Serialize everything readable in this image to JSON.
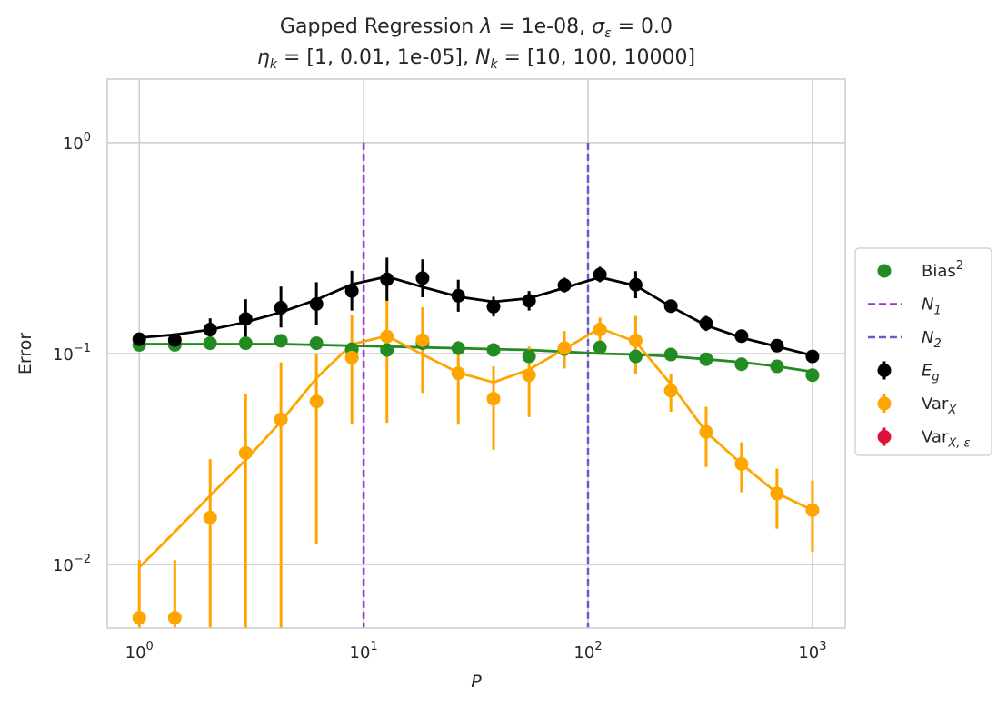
{
  "chart_data": {
    "type": "scatter",
    "title_line1": "Gapped Regression λ = 1e-08, σε = 0.0",
    "title_line2": "ηk = [1, 0.01, 1e-05], Nk = [10, 100, 10000]",
    "xlabel": "P",
    "ylabel": "Error",
    "xscale": "log",
    "yscale": "log",
    "xlim": [
      0.72,
      1400
    ],
    "ylim": [
      0.005,
      2.0
    ],
    "grid": true,
    "legend_position": "center-right",
    "x_ticks": [
      {
        "base": "10",
        "exp": "0"
      },
      {
        "base": "10",
        "exp": "1"
      },
      {
        "base": "10",
        "exp": "2"
      },
      {
        "base": "10",
        "exp": "3"
      }
    ],
    "y_ticks": [
      {
        "base": "10",
        "exp": "−2"
      },
      {
        "base": "10",
        "exp": "−1"
      },
      {
        "base": "10",
        "exp": "0"
      }
    ],
    "vlines": [
      {
        "x": 10,
        "label": "N₁",
        "color": "#9932cc"
      },
      {
        "x": 100,
        "label": "N₂",
        "color": "#6a5acd"
      }
    ],
    "x": [
      1,
      1.44,
      2.07,
      2.98,
      4.28,
      6.16,
      8.86,
      12.7,
      18.3,
      26.4,
      37.9,
      54.6,
      78.5,
      113,
      163,
      234,
      336,
      483,
      695,
      1000
    ],
    "series": [
      {
        "name": "Bias²",
        "color": "#228b22",
        "points": [
          0.11,
          0.11,
          0.112,
          0.112,
          0.115,
          0.112,
          0.105,
          0.104,
          0.112,
          0.106,
          0.104,
          0.097,
          0.105,
          0.107,
          0.097,
          0.099,
          0.094,
          0.089,
          0.087,
          0.079
        ],
        "line": [
          0.111,
          0.111,
          0.111,
          0.111,
          0.111,
          0.11,
          0.109,
          0.108,
          0.107,
          0.106,
          0.105,
          0.104,
          0.102,
          0.1,
          0.099,
          0.097,
          0.094,
          0.091,
          0.087,
          0.082
        ]
      },
      {
        "name": "E_g",
        "color": "#000000",
        "values": [
          0.117,
          0.116,
          0.13,
          0.146,
          0.165,
          0.172,
          0.198,
          0.225,
          0.228,
          0.188,
          0.167,
          0.178,
          0.211,
          0.237,
          0.212,
          0.168,
          0.139,
          0.121,
          0.109,
          0.097
        ],
        "err_low": [
          0.112,
          0.108,
          0.117,
          0.118,
          0.133,
          0.137,
          0.16,
          0.178,
          0.185,
          0.158,
          0.15,
          0.16,
          0.195,
          0.218,
          0.183,
          0.156,
          0.128,
          0.114,
          0.103,
          0.092
        ],
        "err_high": [
          0.122,
          0.124,
          0.147,
          0.181,
          0.208,
          0.218,
          0.247,
          0.285,
          0.28,
          0.224,
          0.186,
          0.198,
          0.229,
          0.258,
          0.246,
          0.18,
          0.151,
          0.128,
          0.115,
          0.102
        ],
        "line": [
          0.119,
          0.123,
          0.13,
          0.141,
          0.157,
          0.18,
          0.213,
          0.232,
          0.207,
          0.186,
          0.176,
          0.183,
          0.205,
          0.23,
          0.21,
          0.167,
          0.136,
          0.119,
          0.108,
          0.098
        ]
      },
      {
        "name": "Var_X",
        "color": "#ffa500",
        "values": [
          0.0056,
          0.0056,
          0.0167,
          0.0338,
          0.0487,
          0.0593,
          0.0957,
          0.1205,
          0.1158,
          0.0806,
          0.0611,
          0.079,
          0.1063,
          0.13,
          0.1154,
          0.0667,
          0.0425,
          0.03,
          0.0217,
          0.0181
        ],
        "err_low": [
          0.0044,
          0.004,
          0.004,
          0.004,
          0.005,
          0.0125,
          0.046,
          0.047,
          0.065,
          0.046,
          0.035,
          0.05,
          0.085,
          0.112,
          0.08,
          0.053,
          0.029,
          0.022,
          0.0148,
          0.0115
        ],
        "err_high": [
          0.0105,
          0.0105,
          0.0316,
          0.064,
          0.091,
          0.099,
          0.152,
          0.183,
          0.166,
          0.115,
          0.087,
          0.108,
          0.128,
          0.148,
          0.151,
          0.08,
          0.056,
          0.038,
          0.0285,
          0.025
        ],
        "line": [
          0.0097,
          0.0143,
          0.0212,
          0.0313,
          0.0476,
          0.0764,
          0.1107,
          0.1213,
          0.099,
          0.0812,
          0.073,
          0.084,
          0.1052,
          0.132,
          0.1138,
          0.0716,
          0.0425,
          0.03,
          0.0218,
          0.0181
        ]
      },
      {
        "name": "Var_{X,ε}",
        "color": "#dc143c",
        "values": []
      }
    ],
    "legend": [
      {
        "kind": "dot",
        "color": "#228b22",
        "label": "Bias",
        "sup": "2",
        "sub": ""
      },
      {
        "kind": "dash",
        "color": "#9932cc",
        "label": "N",
        "sup": "",
        "sub": "1"
      },
      {
        "kind": "dash",
        "color": "#6a5acd",
        "label": "N",
        "sup": "",
        "sub": "2"
      },
      {
        "kind": "errdot",
        "color": "#000000",
        "label": "E",
        "sup": "",
        "sub": "g"
      },
      {
        "kind": "errdot",
        "color": "#ffa500",
        "label": "Var",
        "sup": "",
        "sub": "X"
      },
      {
        "kind": "errdot",
        "color": "#dc143c",
        "label": "Var",
        "sup": "",
        "sub": "X, ε"
      }
    ]
  }
}
